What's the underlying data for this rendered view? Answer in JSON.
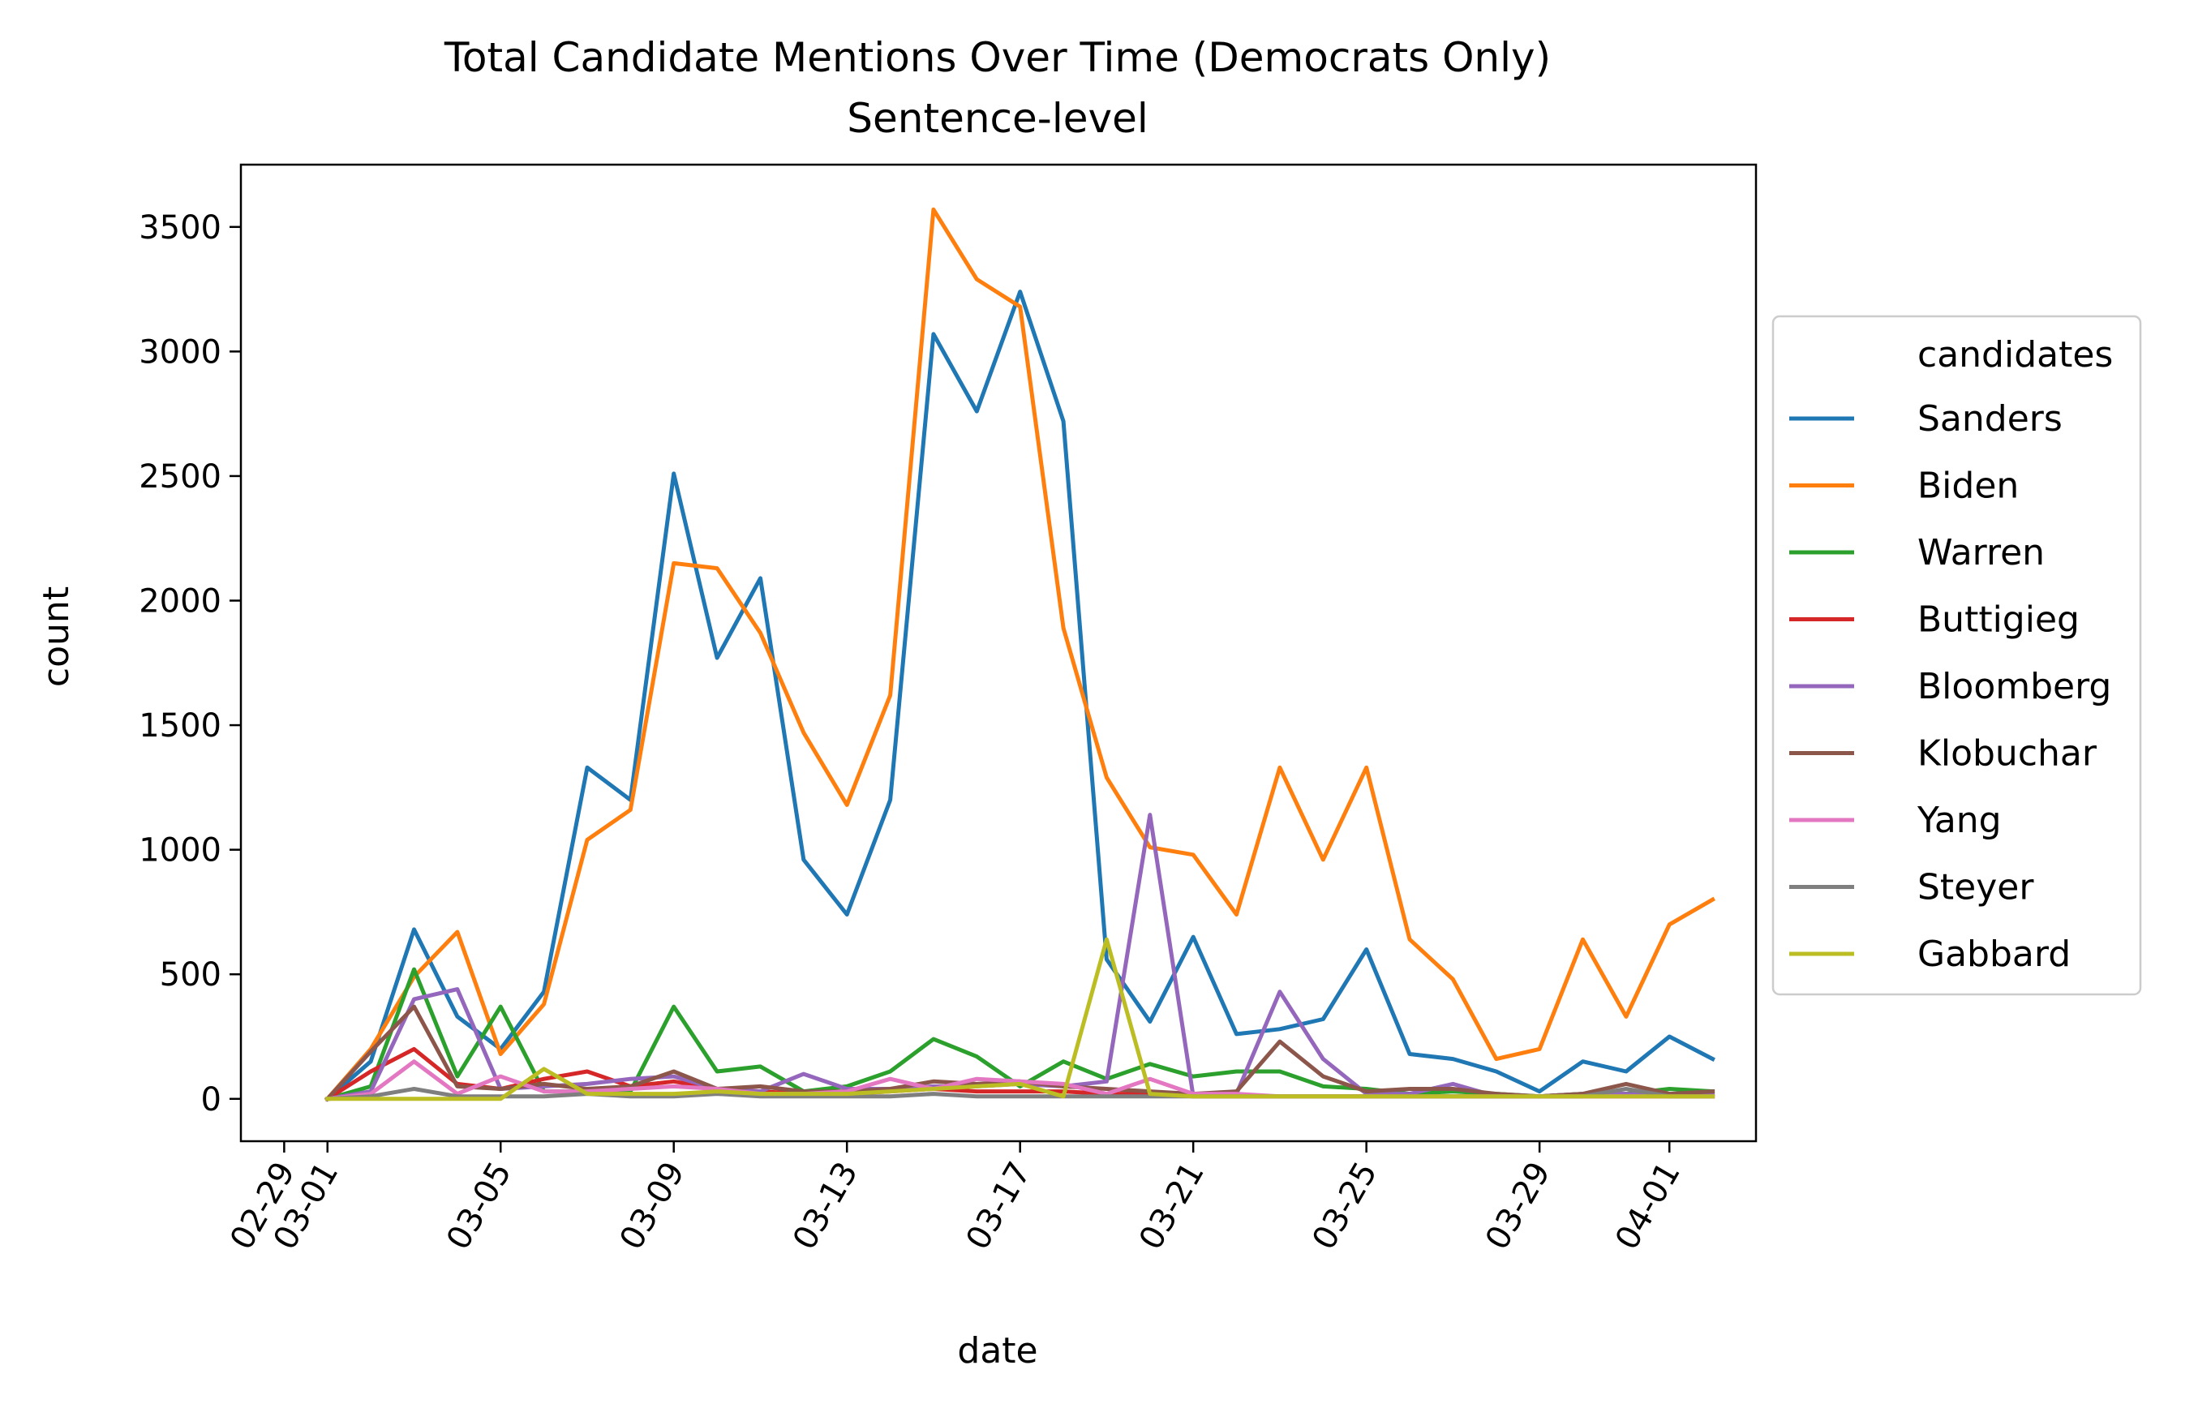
{
  "chart_data": {
    "type": "line",
    "title": "Total Candidate Mentions Over Time (Democrats Only)",
    "subtitle": "Sentence-level",
    "xlabel": "date",
    "ylabel": "count",
    "xlim": [
      "2020-02-28",
      "2020-04-03"
    ],
    "ylim": [
      -170,
      3750
    ],
    "yticks": [
      0,
      500,
      1000,
      1500,
      2000,
      2500,
      3000,
      3500
    ],
    "xticks": [
      {
        "date": "2020-02-29",
        "label": "02-29"
      },
      {
        "date": "2020-03-01",
        "label": "03-01"
      },
      {
        "date": "2020-03-05",
        "label": "03-05"
      },
      {
        "date": "2020-03-09",
        "label": "03-09"
      },
      {
        "date": "2020-03-13",
        "label": "03-13"
      },
      {
        "date": "2020-03-17",
        "label": "03-17"
      },
      {
        "date": "2020-03-21",
        "label": "03-21"
      },
      {
        "date": "2020-03-25",
        "label": "03-25"
      },
      {
        "date": "2020-03-29",
        "label": "03-29"
      },
      {
        "date": "2020-04-01",
        "label": "04-01"
      }
    ],
    "legend": {
      "title": "candidates",
      "placement": "right, outside plot"
    },
    "grid": false,
    "x": [
      "2020-03-01",
      "2020-03-02",
      "2020-03-03",
      "2020-03-04",
      "2020-03-05",
      "2020-03-06",
      "2020-03-07",
      "2020-03-08",
      "2020-03-09",
      "2020-03-10",
      "2020-03-11",
      "2020-03-12",
      "2020-03-13",
      "2020-03-14",
      "2020-03-15",
      "2020-03-16",
      "2020-03-17",
      "2020-03-18",
      "2020-03-19",
      "2020-03-20",
      "2020-03-21",
      "2020-03-22",
      "2020-03-23",
      "2020-03-24",
      "2020-03-25",
      "2020-03-26",
      "2020-03-27",
      "2020-03-28",
      "2020-03-29",
      "2020-03-30",
      "2020-03-31",
      "2020-04-01",
      "2020-04-02"
    ],
    "series": [
      {
        "name": "Sanders",
        "color": "#1f77b4",
        "values": [
          0,
          150,
          680,
          330,
          200,
          430,
          1330,
          1200,
          2510,
          1770,
          2090,
          960,
          740,
          1200,
          3070,
          2760,
          3240,
          2720,
          560,
          310,
          650,
          260,
          280,
          320,
          600,
          180,
          160,
          110,
          30,
          150,
          110,
          250,
          160
        ]
      },
      {
        "name": "Biden",
        "color": "#ff7f0e",
        "values": [
          0,
          200,
          490,
          670,
          180,
          380,
          1040,
          1160,
          2150,
          2130,
          1870,
          1470,
          1180,
          1620,
          3570,
          3290,
          3180,
          1890,
          1290,
          1010,
          980,
          740,
          1330,
          960,
          1330,
          640,
          480,
          160,
          200,
          640,
          330,
          700,
          800
        ]
      },
      {
        "name": "Warren",
        "color": "#2ca02c",
        "values": [
          0,
          50,
          520,
          90,
          370,
          30,
          30,
          30,
          370,
          110,
          130,
          30,
          50,
          110,
          240,
          170,
          50,
          150,
          80,
          140,
          90,
          110,
          110,
          50,
          40,
          20,
          30,
          20,
          10,
          20,
          20,
          40,
          30
        ]
      },
      {
        "name": "Buttigieg",
        "color": "#d62728",
        "values": [
          0,
          110,
          200,
          60,
          40,
          80,
          110,
          50,
          70,
          40,
          30,
          20,
          20,
          30,
          40,
          30,
          30,
          30,
          20,
          20,
          10,
          10,
          10,
          10,
          10,
          10,
          10,
          10,
          10,
          10,
          10,
          10,
          10
        ]
      },
      {
        "name": "Bloomberg",
        "color": "#9467bd",
        "values": [
          0,
          30,
          400,
          440,
          40,
          50,
          60,
          80,
          90,
          40,
          30,
          100,
          40,
          40,
          50,
          50,
          60,
          50,
          70,
          1140,
          10,
          20,
          430,
          160,
          20,
          20,
          60,
          10,
          10,
          20,
          20,
          10,
          20
        ]
      },
      {
        "name": "Klobuchar",
        "color": "#8c564b",
        "values": [
          0,
          190,
          370,
          50,
          40,
          60,
          40,
          50,
          110,
          40,
          50,
          30,
          30,
          40,
          70,
          60,
          70,
          50,
          40,
          30,
          20,
          30,
          230,
          90,
          30,
          40,
          40,
          20,
          10,
          20,
          60,
          20,
          30
        ]
      },
      {
        "name": "Yang",
        "color": "#e377c2",
        "values": [
          0,
          20,
          150,
          20,
          90,
          30,
          30,
          40,
          50,
          40,
          20,
          20,
          30,
          80,
          40,
          80,
          70,
          60,
          20,
          80,
          20,
          20,
          10,
          10,
          10,
          10,
          10,
          10,
          10,
          10,
          10,
          10,
          10
        ]
      },
      {
        "name": "Steyer",
        "color": "#7f7f7f",
        "values": [
          0,
          10,
          40,
          10,
          10,
          10,
          20,
          10,
          10,
          20,
          10,
          10,
          10,
          10,
          20,
          10,
          10,
          10,
          10,
          10,
          10,
          10,
          10,
          10,
          10,
          10,
          10,
          10,
          10,
          10,
          40,
          10,
          10
        ]
      },
      {
        "name": "Gabbard",
        "color": "#bcbd22",
        "values": [
          0,
          0,
          0,
          0,
          0,
          120,
          20,
          20,
          20,
          30,
          20,
          20,
          20,
          30,
          40,
          50,
          60,
          10,
          640,
          20,
          10,
          10,
          10,
          10,
          10,
          10,
          10,
          10,
          10,
          10,
          10,
          10,
          10
        ]
      }
    ]
  }
}
